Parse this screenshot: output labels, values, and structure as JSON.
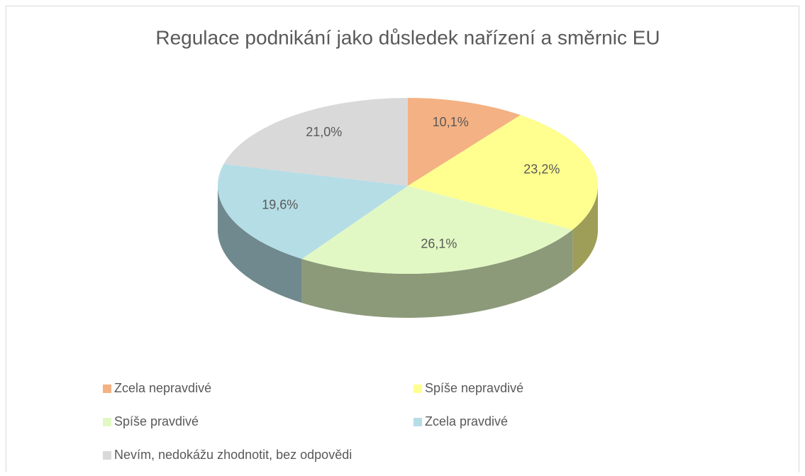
{
  "chart_data": {
    "type": "pie",
    "title": "Regulace podnikání jako důsledek nařízení a směrnic EU",
    "categories": [
      "Zcela nepravdivé",
      "Spíše nepravdivé",
      "Spíše pravdivé",
      "Zcela pravdivé",
      "Nevím, nedokážu zhodnotit, bez odpovědi"
    ],
    "values": [
      10.1,
      23.2,
      26.1,
      19.6,
      21.0
    ],
    "value_labels": [
      "10,1%",
      "23,2%",
      "26,1%",
      "19,6%",
      "21,0%"
    ],
    "colors": [
      "#f4b183",
      "#ffff8f",
      "#e2f8c4",
      "#b5dde6",
      "#d9d9d9"
    ],
    "legend": "bottom"
  }
}
